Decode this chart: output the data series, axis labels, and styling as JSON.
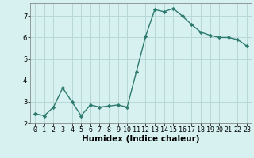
{
  "xlabel": "Humidex (Indice chaleur)",
  "ylabel": "",
  "x": [
    0,
    1,
    2,
    3,
    4,
    5,
    6,
    7,
    8,
    9,
    10,
    11,
    12,
    13,
    14,
    15,
    16,
    17,
    18,
    19,
    20,
    21,
    22,
    23
  ],
  "y": [
    2.45,
    2.35,
    2.75,
    3.65,
    3.0,
    2.35,
    2.85,
    2.75,
    2.8,
    2.85,
    2.75,
    4.4,
    6.05,
    7.3,
    7.2,
    7.35,
    7.0,
    6.6,
    6.25,
    6.1,
    6.0,
    6.0,
    5.9,
    5.6
  ],
  "line_color": "#2d7a6e",
  "marker": "D",
  "marker_size": 2.2,
  "linewidth": 1.0,
  "background_color": "#d7f0f0",
  "grid_color": "#b8d8d8",
  "ylim": [
    2.0,
    7.6
  ],
  "yticks": [
    2,
    3,
    4,
    5,
    6,
    7
  ],
  "title_fontsize": 7.5,
  "xlabel_fontsize": 7.5,
  "tick_fontsize": 6.0,
  "xlabel_fontweight": "bold"
}
